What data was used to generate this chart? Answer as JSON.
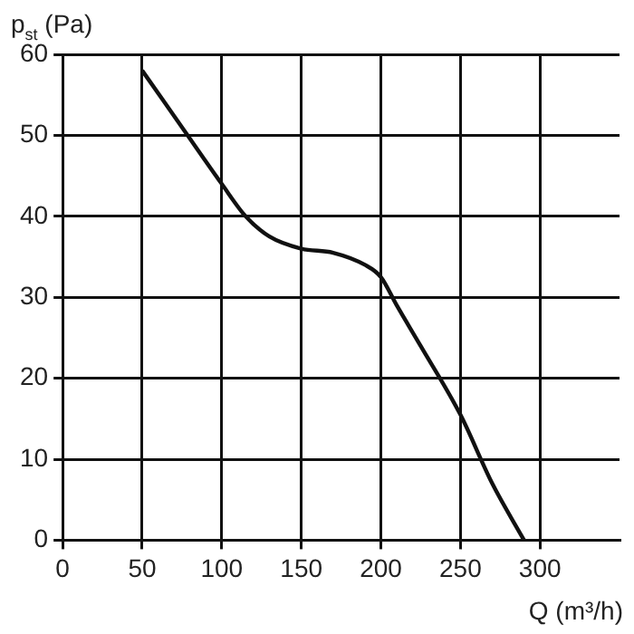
{
  "chart_data": {
    "type": "line",
    "xlabel": "Q (m³/h)",
    "ylabel": "p$_{st}$ (Pa)",
    "series": [
      {
        "color": "#111111",
        "x": [
          50,
          75,
          100,
          115,
          130,
          150,
          170,
          190,
          200,
          210,
          225,
          250,
          270,
          290
        ],
        "values": [
          58,
          51,
          44,
          40,
          37.5,
          36,
          35.5,
          34,
          32.5,
          29,
          24,
          15.5,
          7,
          0
        ]
      }
    ],
    "xlim": [
      0,
      350
    ],
    "xticks": [
      0,
      50,
      100,
      150,
      200,
      250,
      300
    ],
    "ylim": [
      0,
      60
    ],
    "yticks": [
      0,
      10,
      20,
      30,
      40,
      50,
      60
    ],
    "grid": true,
    "legend": false,
    "marker": "none",
    "line_style": "solid"
  }
}
